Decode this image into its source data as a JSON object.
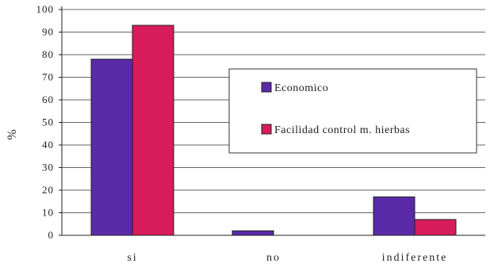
{
  "chart_data": {
    "type": "bar",
    "ylabel": "%",
    "ylim": [
      0,
      100
    ],
    "yticks": [
      0,
      10,
      20,
      30,
      40,
      50,
      60,
      70,
      80,
      90,
      100
    ],
    "ytick_labels": [
      "0",
      "10",
      "20",
      "30",
      "40",
      "50",
      "60",
      "70",
      "80",
      "90",
      "100"
    ],
    "categories": [
      "si",
      "no",
      "indiferente"
    ],
    "series": [
      {
        "name": "Economico",
        "color": "#5a2aa8",
        "values": [
          78,
          2,
          17
        ]
      },
      {
        "name": "Facilidad control m. hierbas",
        "color": "#d81b5a",
        "values": [
          93,
          0,
          7
        ]
      }
    ],
    "grid": true,
    "legend_position": "right-center"
  }
}
